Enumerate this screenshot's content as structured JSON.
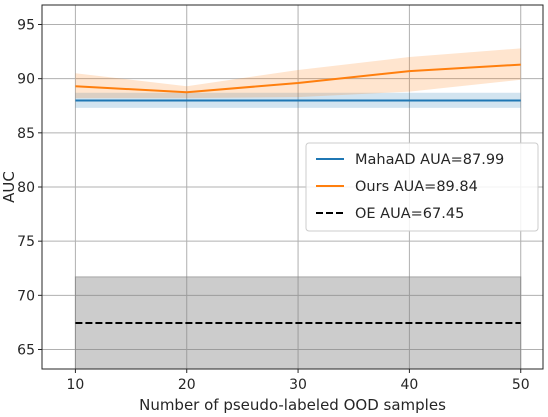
{
  "chart_data": {
    "type": "line",
    "title": "",
    "xlabel": "Number of pseudo-labeled OOD samples",
    "ylabel": "AUC",
    "x": [
      10,
      20,
      30,
      40,
      50
    ],
    "xticks": [
      10,
      20,
      30,
      40,
      50
    ],
    "yticks": [
      65,
      70,
      75,
      80,
      85,
      90,
      95
    ],
    "xlim": [
      7,
      52
    ],
    "ylim": [
      63.2,
      96.8
    ],
    "grid": true,
    "legend_position": "center-right",
    "series": [
      {
        "name": "MahaAD AUA=87.99",
        "color": "#1f77b4",
        "style": "solid",
        "values": [
          87.99,
          87.99,
          87.99,
          87.99,
          87.99
        ],
        "band_lower": [
          87.3,
          87.3,
          87.3,
          87.3,
          87.3
        ],
        "band_upper": [
          88.7,
          88.7,
          88.7,
          88.7,
          88.7
        ]
      },
      {
        "name": "Ours AUA=89.84",
        "color": "#ff7f0e",
        "style": "solid",
        "values": [
          89.3,
          88.75,
          89.6,
          90.7,
          91.3
        ],
        "band_lower": [
          88.2,
          88.2,
          88.3,
          88.8,
          89.9
        ],
        "band_upper": [
          90.5,
          89.3,
          90.8,
          92.0,
          92.8
        ]
      },
      {
        "name": "OE AUA=67.45",
        "color": "#000000",
        "style": "dashed",
        "values": [
          67.45,
          67.45,
          67.45,
          67.45,
          67.45
        ],
        "band_lower": [
          63.2,
          63.2,
          63.2,
          63.2,
          63.2
        ],
        "band_upper": [
          71.7,
          71.7,
          71.7,
          71.7,
          71.7
        ]
      }
    ]
  }
}
